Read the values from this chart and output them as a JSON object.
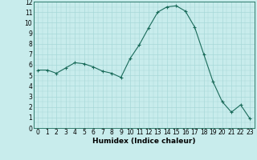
{
  "x": [
    0,
    1,
    2,
    3,
    4,
    5,
    6,
    7,
    8,
    9,
    10,
    11,
    12,
    13,
    14,
    15,
    16,
    17,
    18,
    19,
    20,
    21,
    22,
    23
  ],
  "y": [
    5.5,
    5.5,
    5.2,
    5.7,
    6.2,
    6.1,
    5.8,
    5.4,
    5.2,
    4.8,
    6.6,
    7.9,
    9.5,
    11.0,
    11.5,
    11.6,
    11.1,
    9.6,
    7.0,
    4.4,
    2.5,
    1.5,
    2.2,
    0.9
  ],
  "xlabel": "Humidex (Indice chaleur)",
  "ylim": [
    0,
    12
  ],
  "xlim": [
    -0.5,
    23.5
  ],
  "yticks": [
    0,
    1,
    2,
    3,
    4,
    5,
    6,
    7,
    8,
    9,
    10,
    11,
    12
  ],
  "xticks": [
    0,
    1,
    2,
    3,
    4,
    5,
    6,
    7,
    8,
    9,
    10,
    11,
    12,
    13,
    14,
    15,
    16,
    17,
    18,
    19,
    20,
    21,
    22,
    23
  ],
  "line_color": "#1a6b5a",
  "marker": "+",
  "bg_color": "#c8ecec",
  "grid_color_major": "#a8d8d8",
  "grid_color_minor": "#b8e4e4",
  "xlabel_fontsize": 6.5,
  "tick_fontsize": 5.5
}
